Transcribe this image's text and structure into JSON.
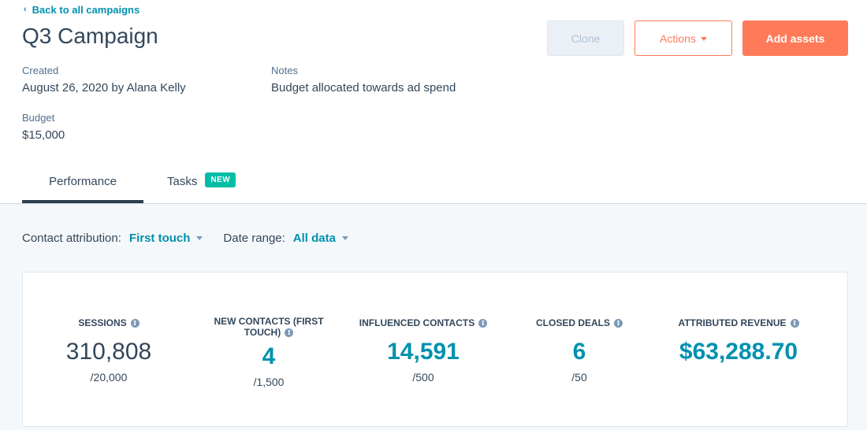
{
  "header": {
    "back_link": "Back to all campaigns",
    "title": "Q3 Campaign",
    "buttons": {
      "clone": "Clone",
      "actions": "Actions",
      "add_assets": "Add assets"
    }
  },
  "details": {
    "created_label": "Created",
    "created_value": "August 26, 2020 by Alana Kelly",
    "notes_label": "Notes",
    "notes_value": "Budget allocated towards ad spend",
    "budget_label": "Budget",
    "budget_value": "$15,000"
  },
  "tabs": [
    {
      "label": "Performance",
      "active": true
    },
    {
      "label": "Tasks",
      "badge": "NEW"
    }
  ],
  "filters": {
    "attribution_label": "Contact attribution:",
    "attribution_value": "First touch",
    "date_label": "Date range:",
    "date_value": "All data"
  },
  "metrics": [
    {
      "label": "SESSIONS",
      "value": "310,808",
      "goal": "/20,000"
    },
    {
      "label": "NEW CONTACTS (FIRST TOUCH)",
      "value": "4",
      "goal": "/1,500"
    },
    {
      "label": "INFLUENCED CONTACTS",
      "value": "14,591",
      "goal": "/500"
    },
    {
      "label": "CLOSED DEALS",
      "value": "6",
      "goal": "/50"
    },
    {
      "label": "ATTRIBUTED REVENUE",
      "value": "$63,288.70",
      "goal": ""
    }
  ],
  "colors": {
    "accent": "#0091ae",
    "primary_button": "#ff7a59",
    "badge": "#00bda5",
    "text": "#33475b"
  }
}
